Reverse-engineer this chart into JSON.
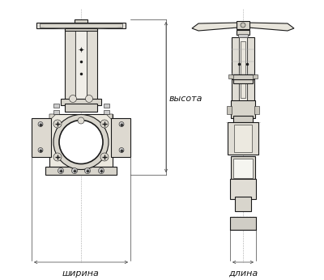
{
  "bg_color": "#ffffff",
  "line_color": "#1a1a1a",
  "dim_color": "#444444",
  "label_ширина": "ширина",
  "label_длина": "длина",
  "label_высота": "высота",
  "font_size_label": 8,
  "fig_width": 4.0,
  "fig_height": 3.46,
  "dpi": 100,
  "lw_main": 0.8,
  "lw_thin": 0.4,
  "lw_thick": 1.2,
  "lw_dim": 0.5
}
